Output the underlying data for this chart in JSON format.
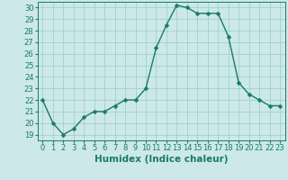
{
  "x": [
    0,
    1,
    2,
    3,
    4,
    5,
    6,
    7,
    8,
    9,
    10,
    11,
    12,
    13,
    14,
    15,
    16,
    17,
    18,
    19,
    20,
    21,
    22,
    23
  ],
  "y": [
    22,
    20,
    19,
    19.5,
    20.5,
    21,
    21,
    21.5,
    22,
    22,
    23,
    26.5,
    28.5,
    30.2,
    30,
    29.5,
    29.5,
    29.5,
    27.5,
    23.5,
    22.5,
    22,
    21.5,
    21.5
  ],
  "line_color": "#1a7a6a",
  "marker_color": "#1a7a6a",
  "bg_color": "#cce8e8",
  "grid_color": "#99cccc",
  "xlabel": "Humidex (Indice chaleur)",
  "xlim": [
    -0.5,
    23.5
  ],
  "ylim": [
    18.5,
    30.5
  ],
  "yticks": [
    19,
    20,
    21,
    22,
    23,
    24,
    25,
    26,
    27,
    28,
    29,
    30
  ],
  "xticks": [
    0,
    1,
    2,
    3,
    4,
    5,
    6,
    7,
    8,
    9,
    10,
    11,
    12,
    13,
    14,
    15,
    16,
    17,
    18,
    19,
    20,
    21,
    22,
    23
  ],
  "marker_size": 2.5,
  "line_width": 1.0,
  "xlabel_fontsize": 7.5,
  "tick_fontsize": 6
}
